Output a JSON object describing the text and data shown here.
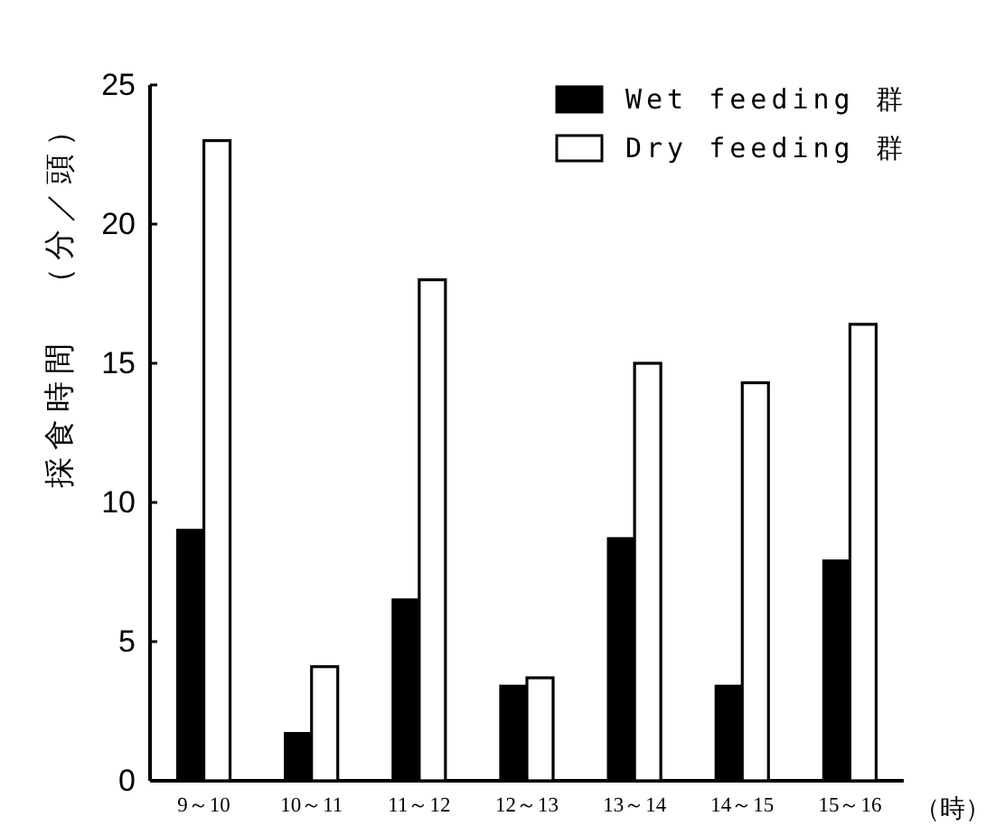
{
  "chart_data": {
    "type": "bar",
    "ylabel": "採食時間　（分／頭）",
    "xlabel": "（時）",
    "categories": [
      "9～10",
      "10～11",
      "11～12",
      "12～13",
      "13～14",
      "14～15",
      "15～16"
    ],
    "series": [
      {
        "name": "Wet feeding 群",
        "color": "#000000",
        "values": [
          9.0,
          1.7,
          6.5,
          3.4,
          8.7,
          3.4,
          7.9
        ]
      },
      {
        "name": "Dry feeding 群",
        "color": "#ffffff",
        "values": [
          23.0,
          4.1,
          18.0,
          3.7,
          15.0,
          14.3,
          16.4
        ]
      }
    ],
    "ylim": [
      0,
      25
    ],
    "yticks": [
      0,
      5,
      10,
      15,
      20,
      25
    ],
    "grid": false,
    "legend": "top right"
  }
}
